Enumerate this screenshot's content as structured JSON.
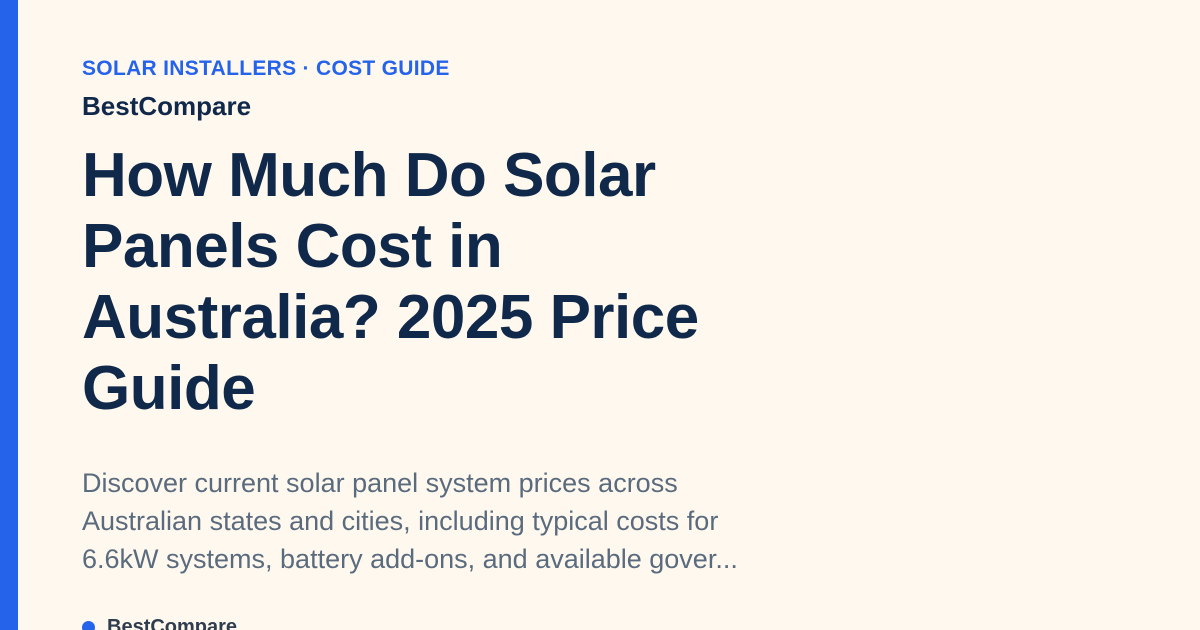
{
  "header": {
    "eyebrow": "SOLAR INSTALLERS · COST GUIDE",
    "brand": "BestCompare"
  },
  "article": {
    "title": "How Much Do Solar Panels Cost in Australia? 2025 Price Guide",
    "description": "Discover current solar panel system prices across Australian states and cities, including typical costs for 6.6kW systems, battery add-ons, and available gover..."
  },
  "footer": {
    "site_name": "BestCompare"
  },
  "colors": {
    "accent": "#2563eb",
    "background": "#fef8ee",
    "title": "#10294a",
    "description": "#5b6b7e"
  }
}
